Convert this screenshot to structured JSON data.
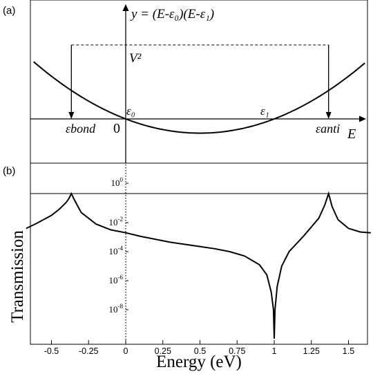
{
  "chart_data": [
    {
      "panel": "(a)",
      "type": "line",
      "equation": "y = (E-ε₀)(E-ε₁)",
      "eps0": 0,
      "eps1": 1,
      "V2": 1.3,
      "e_bond": -0.366,
      "e_anti": 1.366,
      "x_label": "E",
      "labels": {
        "V2": "V²",
        "eps0": "ε₀",
        "eps1": "ε₁",
        "origin": "0",
        "bond": "εbond",
        "anti": "εanti"
      }
    },
    {
      "panel": "(b)",
      "type": "line",
      "xlabel": "Energy (eV)",
      "ylabel": "Transmission",
      "xlim": [
        -0.67,
        1.65
      ],
      "xticks": [
        -0.5,
        -0.25,
        0,
        0.25,
        0.5,
        0.75,
        1,
        1.25,
        1.5
      ],
      "xtick_labels": [
        "-0.5",
        "-0.25",
        "0",
        "0.25",
        "0.5",
        "0.75",
        "1",
        "1.25",
        "1.5"
      ],
      "yscale": "log",
      "ylim_log10": [
        -10,
        0
      ],
      "ytick_labels": [
        {
          "base": "10",
          "exp": "0"
        },
        {
          "base": "10",
          "exp": "-2"
        },
        {
          "base": "10",
          "exp": "-4"
        },
        {
          "base": "10",
          "exp": "-6"
        },
        {
          "base": "10",
          "exp": "-8"
        }
      ],
      "ytick_log10": [
        0,
        -2,
        -4,
        -6,
        -8
      ],
      "peaks": [
        -0.366,
        1.366
      ],
      "antiresonance": 1.0,
      "broken_axis": true,
      "series": [
        {
          "x": [
            -0.67,
            -0.6,
            -0.5,
            -0.45,
            -0.4,
            -0.38,
            -0.366,
            -0.35,
            -0.3,
            -0.2,
            -0.1,
            0,
            0.1,
            0.2,
            0.3,
            0.4,
            0.5,
            0.6,
            0.7,
            0.8,
            0.9,
            0.95,
            0.98,
            0.995,
            1.0,
            1.005,
            1.02,
            1.05,
            1.1,
            1.2,
            1.3,
            1.34,
            1.366,
            1.39,
            1.43,
            1.5,
            1.58,
            1.65
          ],
          "log10T": [
            -2.4,
            -2.05,
            -1.5,
            -1.1,
            -0.6,
            -0.3,
            0.0,
            -0.35,
            -1.3,
            -2.1,
            -2.5,
            -2.7,
            -2.95,
            -3.15,
            -3.35,
            -3.5,
            -3.65,
            -3.8,
            -4.0,
            -4.3,
            -4.9,
            -5.6,
            -6.8,
            -8.0,
            -10.0,
            -8.0,
            -6.4,
            -5.0,
            -4.0,
            -2.9,
            -1.7,
            -0.8,
            0.0,
            -0.9,
            -1.8,
            -2.4,
            -2.65,
            -2.7
          ]
        }
      ]
    }
  ]
}
